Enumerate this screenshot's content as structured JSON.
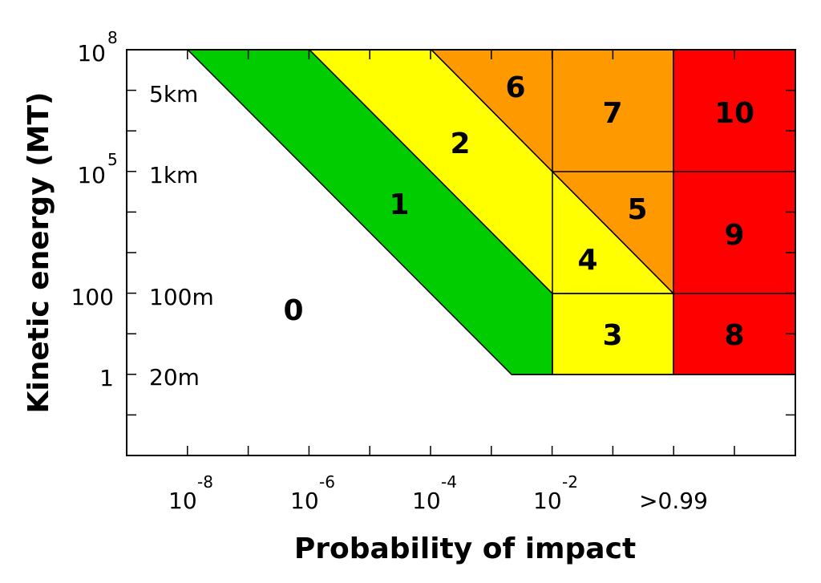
{
  "diagram": {
    "y_axis_label": "Kinetic energy (MT)",
    "x_axis_label": "Probability of impact",
    "y_tick_labels": [
      {
        "base": "10",
        "exp": "8"
      },
      {
        "base": "10",
        "exp": "5"
      },
      {
        "base": "100"
      },
      {
        "base": "1"
      }
    ],
    "size_labels": [
      "5km",
      "1km",
      "100m",
      "20m"
    ],
    "x_tick_labels": [
      {
        "base": "10",
        "exp": "-8"
      },
      {
        "base": "10",
        "exp": "-6"
      },
      {
        "base": "10",
        "exp": "-4"
      },
      {
        "base": "10",
        "exp": "-2"
      },
      {
        "base": ">0.99"
      }
    ],
    "regions": [
      "0",
      "1",
      "2",
      "3",
      "4",
      "5",
      "6",
      "7",
      "8",
      "9",
      "10"
    ]
  }
}
